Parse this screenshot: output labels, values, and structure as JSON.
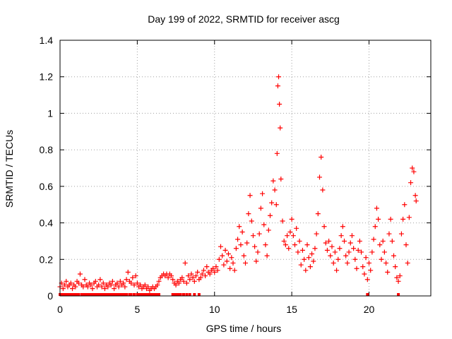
{
  "chart_data": {
    "type": "scatter",
    "title": "Day 199 of 2022, SRMTID for receiver ascg",
    "xlabel": "GPS time / hours",
    "ylabel": "SRMTID / TECUs",
    "xlim": [
      0,
      24
    ],
    "ylim": [
      0,
      1.4
    ],
    "xticks": [
      0,
      5,
      10,
      15,
      20
    ],
    "yticks": [
      0,
      0.2,
      0.4,
      0.6,
      0.8,
      1,
      1.2,
      1.4
    ],
    "ytick_labels": [
      "0",
      "0.2",
      "0.4",
      "0.6",
      "0.8",
      "1",
      "1.2",
      "1.4"
    ],
    "grid": true,
    "marker": "plus",
    "series": [
      {
        "name": "SRMTID",
        "color": "#ff0000",
        "points": [
          [
            0.0,
            0.05
          ],
          [
            0.1,
            0.07
          ],
          [
            0.2,
            0.04
          ],
          [
            0.3,
            0.06
          ],
          [
            0.4,
            0.08
          ],
          [
            0.5,
            0.05
          ],
          [
            0.6,
            0.06
          ],
          [
            0.7,
            0.07
          ],
          [
            0.8,
            0.04
          ],
          [
            0.9,
            0.06
          ],
          [
            1.0,
            0.05
          ],
          [
            1.1,
            0.08
          ],
          [
            1.2,
            0.07
          ],
          [
            1.3,
            0.12
          ],
          [
            1.4,
            0.06
          ],
          [
            1.5,
            0.05
          ],
          [
            1.6,
            0.09
          ],
          [
            1.7,
            0.06
          ],
          [
            1.8,
            0.05
          ],
          [
            1.9,
            0.07
          ],
          [
            2.0,
            0.06
          ],
          [
            2.1,
            0.04
          ],
          [
            2.2,
            0.07
          ],
          [
            2.3,
            0.08
          ],
          [
            2.4,
            0.05
          ],
          [
            2.5,
            0.06
          ],
          [
            2.6,
            0.09
          ],
          [
            2.7,
            0.05
          ],
          [
            2.8,
            0.07
          ],
          [
            2.9,
            0.04
          ],
          [
            3.0,
            0.06
          ],
          [
            3.1,
            0.05
          ],
          [
            3.2,
            0.07
          ],
          [
            3.3,
            0.06
          ],
          [
            3.4,
            0.08
          ],
          [
            3.5,
            0.04
          ],
          [
            3.6,
            0.06
          ],
          [
            3.7,
            0.07
          ],
          [
            3.8,
            0.05
          ],
          [
            3.9,
            0.08
          ],
          [
            4.0,
            0.06
          ],
          [
            4.1,
            0.07
          ],
          [
            4.2,
            0.05
          ],
          [
            4.3,
            0.09
          ],
          [
            4.4,
            0.13
          ],
          [
            4.5,
            0.08
          ],
          [
            4.6,
            0.07
          ],
          [
            4.7,
            0.1
          ],
          [
            4.8,
            0.06
          ],
          [
            4.9,
            0.11
          ],
          [
            5.0,
            0.07
          ],
          [
            5.1,
            0.05
          ],
          [
            5.2,
            0.06
          ],
          [
            5.3,
            0.04
          ],
          [
            5.4,
            0.05
          ],
          [
            5.5,
            0.06
          ],
          [
            5.6,
            0.04
          ],
          [
            5.7,
            0.05
          ],
          [
            5.8,
            0.03
          ],
          [
            5.9,
            0.04
          ],
          [
            6.0,
            0.05
          ],
          [
            6.1,
            0.04
          ],
          [
            6.2,
            0.05
          ],
          [
            6.3,
            0.06
          ],
          [
            6.4,
            0.08
          ],
          [
            6.5,
            0.1
          ],
          [
            6.6,
            0.11
          ],
          [
            6.7,
            0.12
          ],
          [
            6.8,
            0.11
          ],
          [
            6.9,
            0.12
          ],
          [
            7.0,
            0.1
          ],
          [
            7.1,
            0.12
          ],
          [
            7.2,
            0.11
          ],
          [
            7.3,
            0.09
          ],
          [
            7.4,
            0.07
          ],
          [
            7.5,
            0.06
          ],
          [
            7.6,
            0.08
          ],
          [
            7.7,
            0.07
          ],
          [
            7.8,
            0.09
          ],
          [
            7.9,
            0.1
          ],
          [
            8.0,
            0.08
          ],
          [
            8.1,
            0.18
          ],
          [
            8.2,
            0.07
          ],
          [
            8.3,
            0.11
          ],
          [
            8.4,
            0.09
          ],
          [
            8.5,
            0.12
          ],
          [
            8.6,
            0.1
          ],
          [
            8.7,
            0.08
          ],
          [
            8.8,
            0.11
          ],
          [
            8.9,
            0.13
          ],
          [
            9.0,
            0.09
          ],
          [
            9.1,
            0.1
          ],
          [
            9.2,
            0.12
          ],
          [
            9.3,
            0.14
          ],
          [
            9.4,
            0.11
          ],
          [
            9.5,
            0.16
          ],
          [
            9.6,
            0.13
          ],
          [
            9.7,
            0.12
          ],
          [
            9.8,
            0.14
          ],
          [
            9.9,
            0.15
          ],
          [
            10.0,
            0.13
          ],
          [
            10.1,
            0.16
          ],
          [
            10.2,
            0.14
          ],
          [
            10.3,
            0.2
          ],
          [
            10.4,
            0.27
          ],
          [
            10.5,
            0.22
          ],
          [
            10.6,
            0.17
          ],
          [
            10.7,
            0.25
          ],
          [
            10.8,
            0.19
          ],
          [
            10.9,
            0.23
          ],
          [
            11.0,
            0.15
          ],
          [
            11.1,
            0.21
          ],
          [
            11.2,
            0.18
          ],
          [
            11.3,
            0.14
          ],
          [
            11.4,
            0.26
          ],
          [
            11.5,
            0.31
          ],
          [
            11.6,
            0.38
          ],
          [
            11.7,
            0.28
          ],
          [
            11.8,
            0.35
          ],
          [
            11.9,
            0.22
          ],
          [
            12.0,
            0.18
          ],
          [
            12.1,
            0.29
          ],
          [
            12.2,
            0.45
          ],
          [
            12.3,
            0.55
          ],
          [
            12.4,
            0.41
          ],
          [
            12.5,
            0.33
          ],
          [
            12.6,
            0.27
          ],
          [
            12.7,
            0.19
          ],
          [
            12.8,
            0.24
          ],
          [
            12.9,
            0.34
          ],
          [
            13.0,
            0.48
          ],
          [
            13.1,
            0.56
          ],
          [
            13.2,
            0.39
          ],
          [
            13.3,
            0.28
          ],
          [
            13.4,
            0.22
          ],
          [
            13.5,
            0.36
          ],
          [
            13.6,
            0.44
          ],
          [
            13.7,
            0.51
          ],
          [
            13.8,
            0.63
          ],
          [
            13.9,
            0.58
          ],
          [
            14.0,
            0.5
          ],
          [
            14.05,
            0.78
          ],
          [
            14.1,
            1.15
          ],
          [
            14.15,
            1.2
          ],
          [
            14.2,
            1.05
          ],
          [
            14.25,
            0.92
          ],
          [
            14.3,
            0.64
          ],
          [
            14.4,
            0.41
          ],
          [
            14.5,
            0.3
          ],
          [
            14.6,
            0.28
          ],
          [
            14.7,
            0.33
          ],
          [
            14.8,
            0.26
          ],
          [
            14.9,
            0.35
          ],
          [
            15.0,
            0.42
          ],
          [
            15.1,
            0.33
          ],
          [
            15.2,
            0.28
          ],
          [
            15.3,
            0.37
          ],
          [
            15.4,
            0.24
          ],
          [
            15.5,
            0.3
          ],
          [
            15.6,
            0.17
          ],
          [
            15.7,
            0.25
          ],
          [
            15.8,
            0.2
          ],
          [
            15.9,
            0.14
          ],
          [
            16.0,
            0.28
          ],
          [
            16.1,
            0.21
          ],
          [
            16.2,
            0.16
          ],
          [
            16.3,
            0.23
          ],
          [
            16.4,
            0.19
          ],
          [
            16.5,
            0.26
          ],
          [
            16.6,
            0.34
          ],
          [
            16.7,
            0.45
          ],
          [
            16.8,
            0.65
          ],
          [
            16.9,
            0.76
          ],
          [
            17.0,
            0.58
          ],
          [
            17.1,
            0.38
          ],
          [
            17.2,
            0.29
          ],
          [
            17.3,
            0.25
          ],
          [
            17.4,
            0.3
          ],
          [
            17.5,
            0.22
          ],
          [
            17.6,
            0.27
          ],
          [
            17.7,
            0.18
          ],
          [
            17.8,
            0.24
          ],
          [
            17.9,
            0.14
          ],
          [
            18.0,
            0.2
          ],
          [
            18.1,
            0.26
          ],
          [
            18.2,
            0.33
          ],
          [
            18.3,
            0.38
          ],
          [
            18.4,
            0.3
          ],
          [
            18.5,
            0.22
          ],
          [
            18.6,
            0.18
          ],
          [
            18.7,
            0.24
          ],
          [
            18.8,
            0.29
          ],
          [
            18.9,
            0.33
          ],
          [
            19.0,
            0.26
          ],
          [
            19.1,
            0.2
          ],
          [
            19.2,
            0.15
          ],
          [
            19.3,
            0.25
          ],
          [
            19.4,
            0.3
          ],
          [
            19.5,
            0.24
          ],
          [
            19.6,
            0.16
          ],
          [
            19.7,
            0.12
          ],
          [
            19.8,
            0.21
          ],
          [
            19.9,
            0.09
          ],
          [
            20.0,
            0.18
          ],
          [
            20.1,
            0.14
          ],
          [
            20.2,
            0.24
          ],
          [
            20.3,
            0.31
          ],
          [
            20.4,
            0.38
          ],
          [
            20.5,
            0.48
          ],
          [
            20.6,
            0.42
          ],
          [
            20.7,
            0.28
          ],
          [
            20.8,
            0.2
          ],
          [
            20.9,
            0.3
          ],
          [
            21.0,
            0.24
          ],
          [
            21.1,
            0.18
          ],
          [
            21.2,
            0.13
          ],
          [
            21.3,
            0.34
          ],
          [
            21.4,
            0.42
          ],
          [
            21.5,
            0.3
          ],
          [
            21.6,
            0.22
          ],
          [
            21.7,
            0.16
          ],
          [
            21.8,
            0.1
          ],
          [
            21.9,
            0.08
          ],
          [
            22.0,
            0.11
          ],
          [
            22.1,
            0.34
          ],
          [
            22.2,
            0.42
          ],
          [
            22.3,
            0.5
          ],
          [
            22.4,
            0.28
          ],
          [
            22.5,
            0.18
          ],
          [
            22.6,
            0.43
          ],
          [
            22.7,
            0.62
          ],
          [
            22.8,
            0.7
          ],
          [
            22.9,
            0.68
          ],
          [
            23.0,
            0.55
          ],
          [
            23.05,
            0.52
          ]
        ]
      }
    ]
  }
}
